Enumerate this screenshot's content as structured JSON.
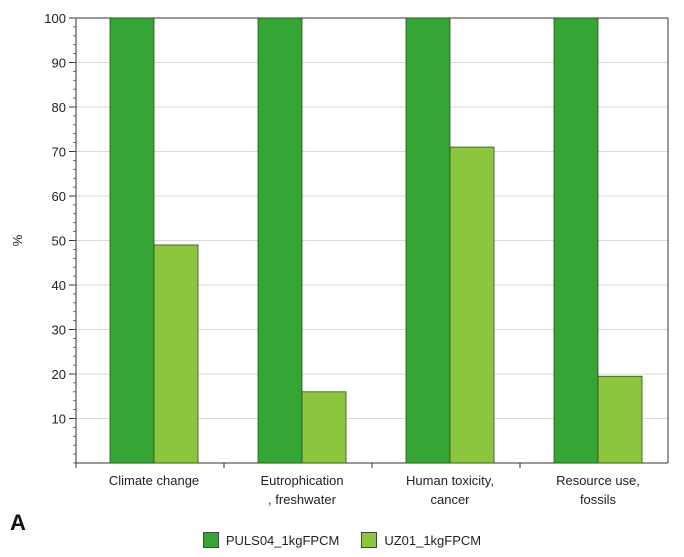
{
  "chart_data": {
    "type": "bar",
    "categories": [
      [
        "Climate change"
      ],
      [
        "Eutrophication",
        ", freshwater"
      ],
      [
        "Human toxicity,",
        "cancer"
      ],
      [
        "Resource use,",
        "fossils"
      ]
    ],
    "series": [
      {
        "name": "PULS04_1kgFPCM",
        "values": [
          100,
          100,
          100,
          100
        ],
        "color": "#35a535"
      },
      {
        "name": "UZ01_1kgFPCM",
        "values": [
          49,
          16,
          71,
          19.5
        ],
        "color": "#8cc63f"
      }
    ],
    "ylabel": "%",
    "ylim": [
      0,
      100
    ],
    "yticks": [
      10,
      20,
      30,
      40,
      50,
      60,
      70,
      80,
      90,
      100
    ],
    "grid": true,
    "legend": "bottom"
  },
  "panel_label": "A"
}
